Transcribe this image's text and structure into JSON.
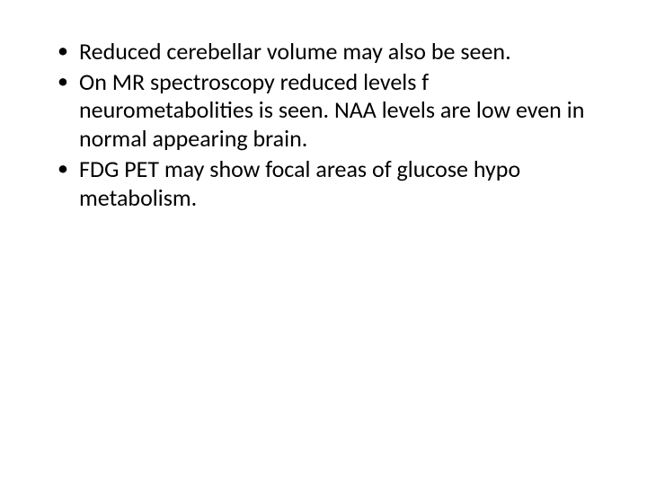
{
  "slide": {
    "background_color": "#ffffff",
    "text_color": "#000000",
    "font_family": "Calibri",
    "font_size_pt": 20,
    "bullets": [
      "Reduced cerebellar volume may also be seen.",
      "On MR spectroscopy reduced levels f neurometabolities is seen. NAA levels are low even in normal appearing brain.",
      "FDG PET may show focal areas of glucose hypo metabolism."
    ]
  }
}
